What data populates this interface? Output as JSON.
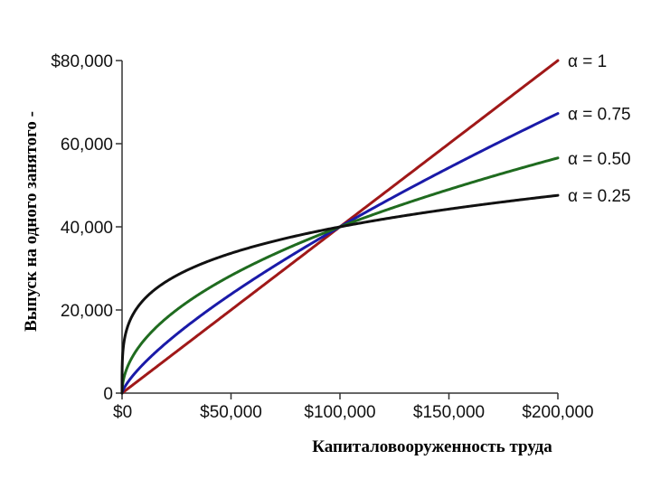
{
  "chart_data": {
    "type": "line",
    "title": "",
    "xlabel": "Капиталовооруженность труда",
    "ylabel": "Выпуск на одного занятого -",
    "xlim": [
      0,
      200000
    ],
    "ylim": [
      0,
      80000
    ],
    "x_ticks": [
      0,
      50000,
      100000,
      150000,
      200000
    ],
    "x_tick_labels": [
      "$0",
      "$50,000",
      "$100,000",
      "$150,000",
      "$200,000"
    ],
    "y_ticks": [
      0,
      20000,
      40000,
      60000,
      80000
    ],
    "y_tick_labels": [
      "0",
      "20,000",
      "40,000",
      "60,000",
      "$80,000"
    ],
    "grid": false,
    "legend_position": "right, at line ends",
    "series": [
      {
        "name": "α = 1",
        "color": "#a01818",
        "alpha": 1,
        "x": [
          0,
          25000,
          50000,
          75000,
          100000,
          125000,
          150000,
          175000,
          200000
        ],
        "y": [
          0,
          10000,
          20000,
          30000,
          40000,
          50000,
          60000,
          70000,
          80000
        ]
      },
      {
        "name": "α = 0.75",
        "color": "#1a1aa8",
        "alpha": 0.75,
        "x": [
          0,
          5000,
          25000,
          50000,
          75000,
          100000,
          125000,
          150000,
          175000,
          200000
        ],
        "y": [
          0,
          4230,
          14140,
          23780,
          32240,
          40000,
          47290,
          54220,
          60870,
          67270
        ]
      },
      {
        "name": "α = 0.50",
        "color": "#1f6b1f",
        "alpha": 0.5,
        "x": [
          0,
          5000,
          25000,
          50000,
          75000,
          100000,
          125000,
          150000,
          175000,
          200000
        ],
        "y": [
          0,
          8940,
          20000,
          28280,
          34640,
          40000,
          44720,
          48990,
          52920,
          56570
        ]
      },
      {
        "name": "α = 0.25",
        "color": "#111111",
        "alpha": 0.25,
        "x": [
          0,
          1000,
          5000,
          25000,
          50000,
          75000,
          100000,
          125000,
          150000,
          175000,
          200000
        ],
        "y": [
          0,
          12650,
          18910,
          28280,
          33640,
          37220,
          40000,
          42290,
          44270,
          46000,
          47570
        ]
      }
    ]
  }
}
